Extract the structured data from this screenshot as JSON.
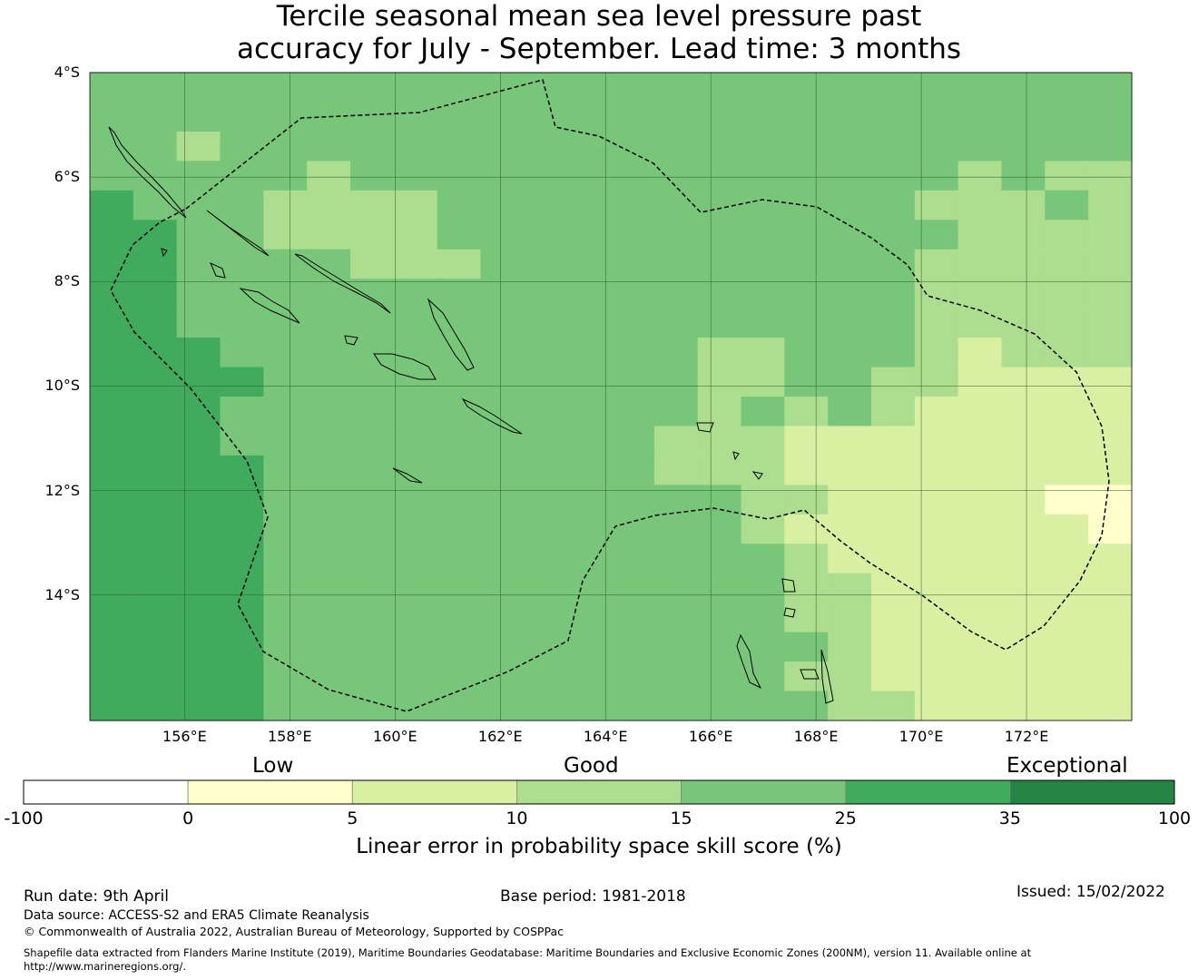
{
  "title": {
    "line1": "Tercile seasonal mean sea level pressure past",
    "line2": "accuracy for July - September. Lead time: 3 months"
  },
  "map": {
    "lon_range": [
      154.2,
      174.0
    ],
    "lat_range": [
      -16.4,
      -4.0
    ],
    "lat_ticks": [
      "4°S",
      "6°S",
      "8°S",
      "10°S",
      "12°S",
      "14°S"
    ],
    "lon_ticks": [
      "156°E",
      "158°E",
      "160°E",
      "162°E",
      "164°E",
      "166°E",
      "168°E",
      "170°E",
      "172°E"
    ],
    "eez_outline": "dashed"
  },
  "colorbar": {
    "category_labels": [
      "Low",
      "Good",
      "Exceptional"
    ],
    "tick_labels": [
      "-100",
      "0",
      "5",
      "10",
      "15",
      "25",
      "35",
      "100"
    ],
    "colors": [
      "#ffffff",
      "#ffffcc",
      "#d9f0a3",
      "#addd8e",
      "#78c679",
      "#41ab5d",
      "#238443"
    ],
    "title": "Linear error in probability space skill score (%)"
  },
  "footer": {
    "run_date": "Run date: 9th April",
    "base_period": "Base period: 1981-2018",
    "issued": "Issued: 15/02/2022",
    "data_source": "Data source: ACCESS-S2 and ERA5 Climate Reanalysis",
    "copyright": "© Commonwealth of Australia 2022, Australian Bureau of Meteorology, Supported by COSPPac",
    "shapefile_line1": "Shapefile data extracted from Flanders Marine Institute (2019), Maritime Boundaries Geodatabase: Maritime Boundaries and Exclusive Economic Zones (200NM), version 11. Available online at",
    "shapefile_line2": "http://www.marineregions.org/."
  }
}
